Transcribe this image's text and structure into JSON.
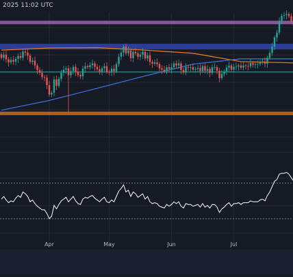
{
  "header": {
    "timestamp_text": "2025 11:02 UTC"
  },
  "colors": {
    "background": "#161a25",
    "grid": "#232834",
    "candle_up": "#26a69a",
    "candle_down": "#ef5350",
    "zone_purple": "#8e5aa0",
    "zone_blue": "#2c3f9a",
    "zone_orange": "#b8621f",
    "zone_teal": "#2a8a8a",
    "ma_orange": "#e07a1f",
    "ma_blue": "#3a6ed6",
    "rsi_line": "#ffffff"
  },
  "chart_data": [
    {
      "type": "candlestick",
      "title": "",
      "xlabel": "",
      "ylabel": "",
      "x_tick_labels": [
        "Apr",
        "May",
        "Jun",
        "Jul"
      ],
      "ylim": [
        80,
        120
      ],
      "grid": true,
      "zones": [
        {
          "name": "",
          "color": "purple",
          "range": [
            116.6,
            117.6
          ]
        },
        {
          "name": "",
          "color": "blue",
          "range": [
            109.4,
            111.0
          ]
        },
        {
          "name": "",
          "color": "teal",
          "range": [
            102.9,
            103.1
          ]
        },
        {
          "name": "",
          "color": "orange",
          "range": [
            90.6,
            91.6
          ]
        }
      ],
      "moving_averages": [
        {
          "name": "",
          "color": "orange",
          "x": [
            0,
            20,
            40,
            60,
            80,
            100,
            118,
            130,
            140,
            146
          ],
          "values": [
            109.2,
            109.8,
            109.9,
            109.2,
            108.3,
            105.9,
            105.6,
            105.4,
            106.1,
            106.8
          ]
        },
        {
          "name": "",
          "color": "blue",
          "x": [
            0,
            20,
            40,
            60,
            80,
            100,
            118,
            130,
            140,
            146
          ],
          "values": [
            92.0,
            94.8,
            98.3,
            101.8,
            105.2,
            106.7,
            106.7,
            106.7,
            107.0,
            107.0
          ]
        }
      ],
      "candles_close": [
        107.0,
        107.9,
        106.6,
        105.7,
        106.4,
        105.9,
        106.7,
        107.5,
        107.0,
        108.8,
        108.5,
        107.6,
        105.8,
        106.2,
        104.8,
        103.5,
        102.7,
        101.5,
        101.3,
        99.2,
        96.5,
        97.0,
        100.8,
        99.0,
        101.0,
        102.7,
        103.6,
        104.0,
        102.0,
        103.2,
        104.4,
        103.0,
        102.1,
        101.7,
        103.9,
        104.6,
        104.3,
        104.9,
        105.4,
        104.4,
        103.7,
        103.0,
        104.0,
        104.6,
        103.0,
        102.8,
        103.9,
        103.2,
        105.2,
        107.3,
        108.5,
        110.2,
        108.3,
        109.1,
        106.9,
        108.7,
        108.3,
        107.3,
        107.9,
        108.7,
        106.8,
        107.7,
        105.8,
        105.3,
        105.7,
        105.2,
        104.0,
        103.6,
        103.2,
        104.3,
        103.8,
        104.3,
        105.4,
        104.8,
        105.4,
        103.5,
        102.8,
        104.4,
        104.2,
        104.3,
        103.6,
        103.8,
        104.1,
        103.2,
        104.6,
        103.3,
        103.8,
        102.7,
        104.3,
        104.3,
        103.3,
        101.2,
        102.4,
        103.1,
        104.2,
        104.8,
        103.6,
        104.4,
        104.5,
        104.8,
        104.2,
        104.8,
        104.7,
        104.6,
        105.5,
        105.0,
        105.2,
        105.2,
        105.8,
        106.0,
        105.3,
        107.0,
        108.4,
        110.2,
        112.8,
        114.2,
        117.5,
        119.0,
        119.2,
        119.5,
        118.9,
        117.5,
        116.1,
        115.5
      ],
      "candles_open": [
        108.0,
        107.0,
        107.9,
        106.6,
        105.7,
        106.4,
        105.9,
        106.7,
        107.5,
        107.0,
        108.8,
        108.5,
        107.6,
        105.8,
        106.2,
        104.8,
        103.5,
        102.7,
        101.5,
        101.3,
        99.2,
        96.5,
        97.0,
        100.8,
        99.0,
        101.0,
        102.7,
        103.6,
        104.0,
        102.0,
        103.2,
        104.4,
        103.0,
        102.1,
        101.7,
        103.9,
        104.6,
        104.3,
        104.9,
        105.4,
        104.4,
        103.7,
        103.0,
        104.0,
        104.6,
        103.0,
        102.8,
        103.9,
        103.2,
        105.2,
        107.3,
        108.5,
        110.2,
        108.3,
        109.1,
        106.9,
        108.7,
        108.3,
        107.3,
        107.9,
        108.7,
        106.8,
        107.7,
        105.8,
        105.3,
        105.7,
        105.2,
        104.0,
        103.6,
        103.2,
        104.3,
        103.8,
        104.3,
        105.4,
        104.8,
        105.4,
        103.5,
        102.8,
        104.4,
        104.2,
        104.3,
        103.6,
        103.8,
        104.1,
        103.2,
        104.6,
        103.3,
        103.8,
        102.7,
        104.3,
        104.3,
        103.3,
        101.2,
        102.4,
        103.1,
        104.2,
        104.8,
        103.6,
        104.4,
        104.5,
        104.8,
        104.2,
        104.8,
        104.7,
        104.6,
        105.5,
        105.0,
        105.2,
        105.2,
        105.8,
        106.0,
        105.3,
        107.0,
        108.4,
        110.2,
        112.8,
        114.2,
        117.5,
        119.0,
        119.2,
        119.5,
        118.9,
        117.5,
        116.1
      ],
      "candles_wick_low": [
        [
          28,
          91.4
        ]
      ]
    },
    {
      "type": "line",
      "title": "",
      "xlabel": "",
      "ylabel": "",
      "ylim": [
        0,
        100
      ],
      "reference_lines": [
        70,
        30
      ],
      "values": [
        52,
        55,
        51,
        48,
        50,
        49,
        53,
        56,
        54,
        60,
        58,
        55,
        49,
        51,
        47,
        44,
        42,
        40,
        40,
        36,
        30,
        33,
        45,
        41,
        46,
        50,
        52,
        54,
        49,
        52,
        55,
        50,
        47,
        46,
        52,
        54,
        53,
        55,
        56,
        53,
        51,
        49,
        52,
        54,
        49,
        48,
        51,
        49,
        55,
        61,
        64,
        68,
        60,
        62,
        55,
        60,
        58,
        54,
        56,
        58,
        52,
        55,
        49,
        47,
        48,
        47,
        44,
        43,
        42,
        46,
        44,
        46,
        49,
        47,
        49,
        44,
        42,
        47,
        46,
        46,
        44,
        45,
        46,
        43,
        47,
        43,
        45,
        42,
        46,
        46,
        43,
        37,
        41,
        43,
        46,
        48,
        44,
        47,
        47,
        48,
        46,
        48,
        48,
        48,
        50,
        49,
        49,
        49,
        51,
        52,
        50,
        56,
        60,
        66,
        72,
        74,
        80,
        81,
        81,
        82,
        80,
        76,
        72,
        70
      ]
    }
  ]
}
